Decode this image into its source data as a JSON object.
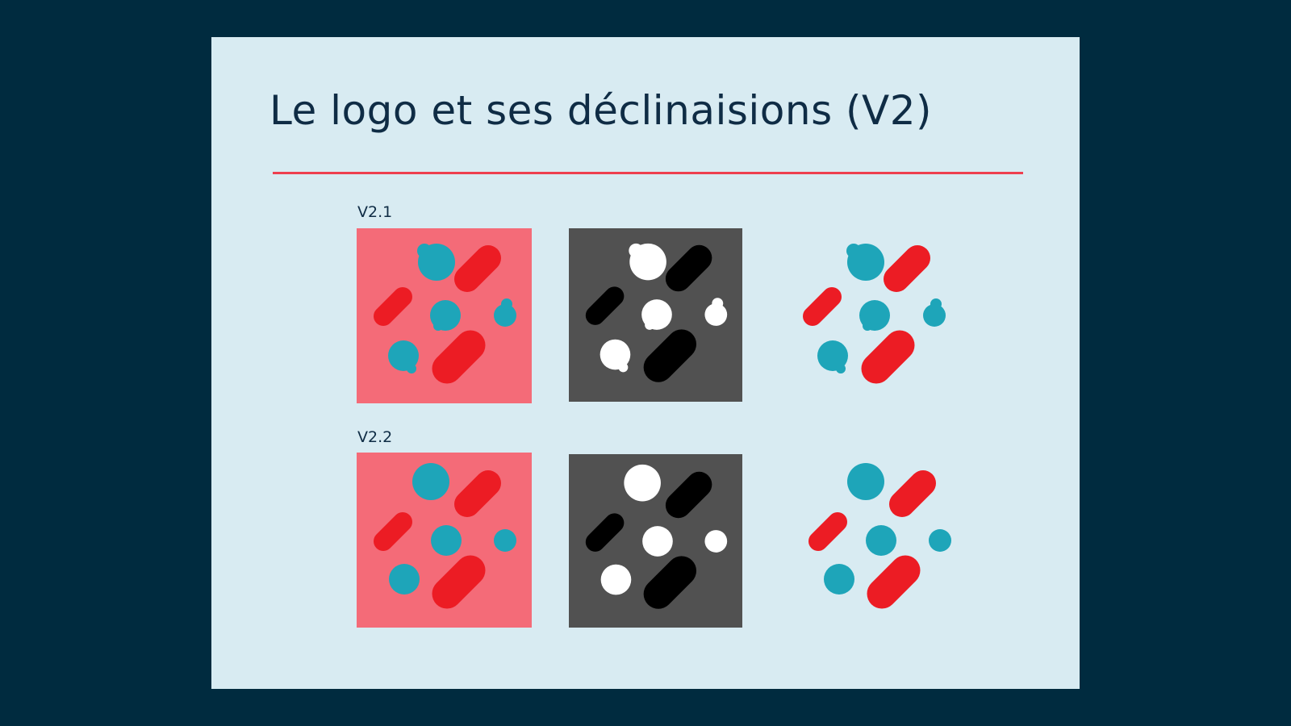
{
  "slide": {
    "title": "Le logo et ses déclinaisions (V2)",
    "accent_color": "#ee3f4f",
    "background_color": "#d8ebf2",
    "frame_color": "#002b3f"
  },
  "variants": [
    {
      "label": "V2.1",
      "style": "bubbles with satellite dots",
      "tiles": [
        {
          "theme": "coral",
          "background": "#f46b78",
          "dots": "#1ea5b9",
          "bars": "#ec1c24"
        },
        {
          "theme": "dark",
          "background": "#515151",
          "dots": "#ffffff",
          "bars": "#000000"
        },
        {
          "theme": "transparent",
          "background": "none",
          "dots": "#1ea5b9",
          "bars": "#ec1c24"
        }
      ]
    },
    {
      "label": "V2.2",
      "style": "plain circles",
      "tiles": [
        {
          "theme": "coral",
          "background": "#f46b78",
          "dots": "#1ea5b9",
          "bars": "#ec1c24"
        },
        {
          "theme": "dark",
          "background": "#515151",
          "dots": "#ffffff",
          "bars": "#000000"
        },
        {
          "theme": "transparent",
          "background": "none",
          "dots": "#1ea5b9",
          "bars": "#ec1c24"
        }
      ]
    }
  ]
}
